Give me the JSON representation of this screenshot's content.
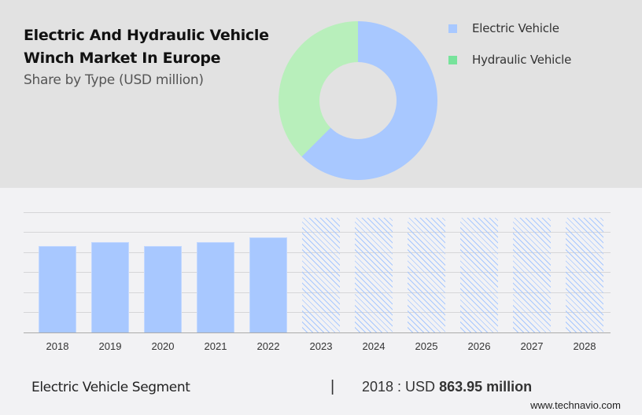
{
  "header": {
    "title_line1": "Electric And Hydraulic Vehicle",
    "title_line2": "Winch Market In Europe",
    "subtitle": "Share by Type (USD million)"
  },
  "legend": [
    {
      "label": "Electric Vehicle",
      "color": "#a8c8ff"
    },
    {
      "label": "Hydraulic Vehicle",
      "color": "#77e39b"
    }
  ],
  "footer": {
    "segment": "Electric Vehicle Segment",
    "separator": "|",
    "value_prefix": "2018 : USD ",
    "value_bold": "863.95 million",
    "url": "www.technavio.com"
  },
  "chart_data": [
    {
      "type": "pie",
      "title": "Share by Type (USD million)",
      "donut": true,
      "labels": [
        "Electric Vehicle",
        "Hydraulic Vehicle"
      ],
      "values": [
        62.5,
        37.5
      ],
      "colors": [
        "#a8c8ff",
        "#b8efbb"
      ],
      "legend_position": "right"
    },
    {
      "type": "bar",
      "title": "Electric Vehicle Segment",
      "categories": [
        "2018",
        "2019",
        "2020",
        "2021",
        "2022",
        "2023",
        "2024",
        "2025",
        "2026",
        "2027",
        "2028"
      ],
      "values": [
        863.95,
        900,
        865,
        905,
        950,
        null,
        null,
        null,
        null,
        null,
        null
      ],
      "forecast_categories": [
        "2023",
        "2024",
        "2025",
        "2026",
        "2027",
        "2028"
      ],
      "annotation": "2018 : USD 863.95 million",
      "xlabel": "",
      "ylabel": "",
      "grid": true,
      "colors": {
        "actual": "#a8c8ff",
        "forecast_hatch": "#a8c8ff"
      }
    }
  ]
}
